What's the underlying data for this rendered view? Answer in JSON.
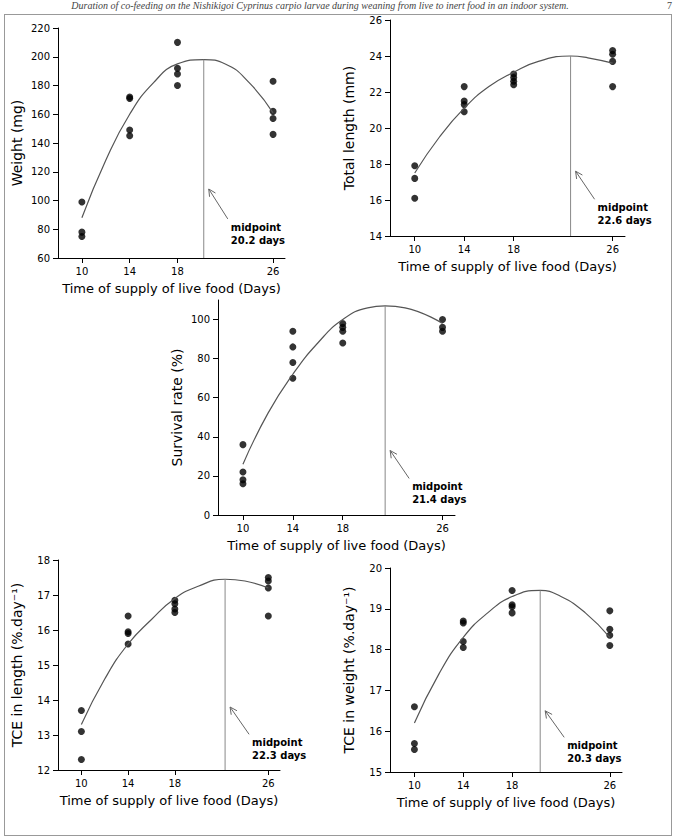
{
  "header": {
    "text": "Duration of co-feeding on the Nishikigoi Cyprinus carpio larvae during weaning from live to inert food in an indoor system.",
    "page": "7"
  },
  "chart_data": [
    {
      "type": "scatter",
      "x_label": "Time of supply of live food (Days)",
      "y_label": "Weight (mg)",
      "color": "#000000",
      "marker": "circle",
      "grid": false,
      "xlim": [
        8,
        27
      ],
      "xticks": [
        10,
        14,
        18,
        26
      ],
      "ylim": [
        60,
        220
      ],
      "yticks": [
        60,
        80,
        100,
        120,
        140,
        160,
        180,
        200,
        220
      ],
      "points": {
        "x": [
          10,
          10,
          10,
          14,
          14,
          14,
          14,
          18,
          18,
          18,
          18,
          26,
          26,
          26,
          26
        ],
        "y": [
          99,
          78,
          75,
          172,
          171,
          149,
          145,
          210,
          192,
          188,
          180,
          183,
          162,
          157,
          146
        ]
      },
      "fit": {
        "type": "line",
        "x": [
          10,
          12,
          14,
          16,
          18,
          20.2,
          22,
          24,
          26
        ],
        "y": [
          88,
          128,
          160,
          182,
          195,
          198,
          195,
          182,
          161
        ]
      },
      "midpoint": 20.2,
      "annotation": [
        "midpoint",
        "20.2 days"
      ]
    },
    {
      "type": "scatter",
      "x_label": "Time of supply of live food (Days)",
      "y_label": "Total length (mm)",
      "color": "#000000",
      "marker": "circle",
      "grid": false,
      "xlim": [
        8,
        27
      ],
      "xticks": [
        10,
        14,
        18,
        26
      ],
      "ylim": [
        14,
        26
      ],
      "yticks": [
        14,
        16,
        18,
        20,
        22,
        24,
        26
      ],
      "points": {
        "x": [
          10,
          10,
          10,
          14,
          14,
          14,
          14,
          18,
          18,
          18,
          18,
          26,
          26,
          26,
          26
        ],
        "y": [
          17.9,
          17.2,
          16.1,
          22.3,
          21.5,
          21.3,
          20.9,
          23.0,
          22.8,
          22.6,
          22.4,
          24.3,
          24.1,
          23.7,
          22.3
        ]
      },
      "fit": {
        "type": "line",
        "x": [
          10,
          12,
          14,
          16,
          18,
          20,
          22.6,
          24,
          26
        ],
        "y": [
          17.5,
          19.5,
          21.1,
          22.3,
          23.1,
          23.7,
          24.0,
          23.9,
          23.6
        ]
      },
      "midpoint": 22.6,
      "annotation": [
        "midpoint",
        "22.6 days"
      ]
    },
    {
      "type": "scatter",
      "x_label": "Time of supply of live food (Days)",
      "y_label": "Survival rate (%)",
      "color": "#000000",
      "marker": "circle",
      "grid": false,
      "xlim": [
        8,
        27
      ],
      "xticks": [
        10,
        14,
        18,
        26
      ],
      "ylim": [
        0,
        110
      ],
      "yticks": [
        0,
        20,
        40,
        60,
        80,
        100
      ],
      "points": {
        "x": [
          10,
          10,
          10,
          10,
          14,
          14,
          14,
          14,
          18,
          18,
          18,
          18,
          26,
          26,
          26
        ],
        "y": [
          36,
          22,
          18,
          16,
          94,
          86,
          78,
          70,
          98,
          96,
          94,
          88,
          100,
          96,
          94
        ]
      },
      "fit": {
        "type": "line",
        "x": [
          10,
          12,
          14,
          16,
          18,
          20,
          21.4,
          23,
          26
        ],
        "y": [
          26,
          52,
          72,
          88,
          100,
          106,
          107,
          106,
          98
        ]
      },
      "midpoint": 21.4,
      "annotation": [
        "midpoint",
        "21.4 days"
      ]
    },
    {
      "type": "scatter",
      "x_label": "Time of supply of live food (Days)",
      "y_label": "TCE in length (%.day⁻¹)",
      "color": "#000000",
      "marker": "circle",
      "grid": false,
      "xlim": [
        8,
        27
      ],
      "xticks": [
        10,
        14,
        18,
        26
      ],
      "ylim": [
        12,
        18
      ],
      "yticks": [
        12,
        13,
        14,
        15,
        16,
        17,
        18
      ],
      "points": {
        "x": [
          10,
          10,
          10,
          14,
          14,
          14,
          14,
          18,
          18,
          18,
          18,
          26,
          26,
          26,
          26
        ],
        "y": [
          13.7,
          13.1,
          12.3,
          16.4,
          15.95,
          15.9,
          15.6,
          16.85,
          16.75,
          16.6,
          16.5,
          17.5,
          17.4,
          17.2,
          16.4
        ]
      },
      "fit": {
        "type": "line",
        "x": [
          10,
          12,
          14,
          16,
          18,
          20,
          22.3,
          24,
          26
        ],
        "y": [
          13.3,
          14.6,
          15.6,
          16.3,
          16.9,
          17.25,
          17.45,
          17.4,
          17.2
        ]
      },
      "midpoint": 22.3,
      "annotation": [
        "midpoint",
        "22.3 days"
      ]
    },
    {
      "type": "scatter",
      "x_label": "Time of supply of live food (Days)",
      "y_label": "TCE in weight (%.day⁻¹)",
      "color": "#000000",
      "marker": "circle",
      "grid": false,
      "xlim": [
        8,
        27
      ],
      "xticks": [
        10,
        14,
        18,
        26
      ],
      "ylim": [
        15,
        20
      ],
      "yticks": [
        15,
        16,
        17,
        18,
        19,
        20
      ],
      "points": {
        "x": [
          10,
          10,
          10,
          14,
          14,
          14,
          14,
          18,
          18,
          18,
          18,
          26,
          26,
          26,
          26
        ],
        "y": [
          16.6,
          15.7,
          15.55,
          18.7,
          18.65,
          18.2,
          18.05,
          19.45,
          19.1,
          19.05,
          18.9,
          18.95,
          18.5,
          18.35,
          18.1
        ]
      },
      "fit": {
        "type": "line",
        "x": [
          10,
          12,
          14,
          16,
          18,
          20.3,
          22,
          24,
          26
        ],
        "y": [
          16.2,
          17.4,
          18.3,
          18.9,
          19.3,
          19.45,
          19.3,
          18.9,
          18.3
        ]
      },
      "midpoint": 20.3,
      "annotation": [
        "midpoint",
        "20.3 days"
      ]
    }
  ]
}
